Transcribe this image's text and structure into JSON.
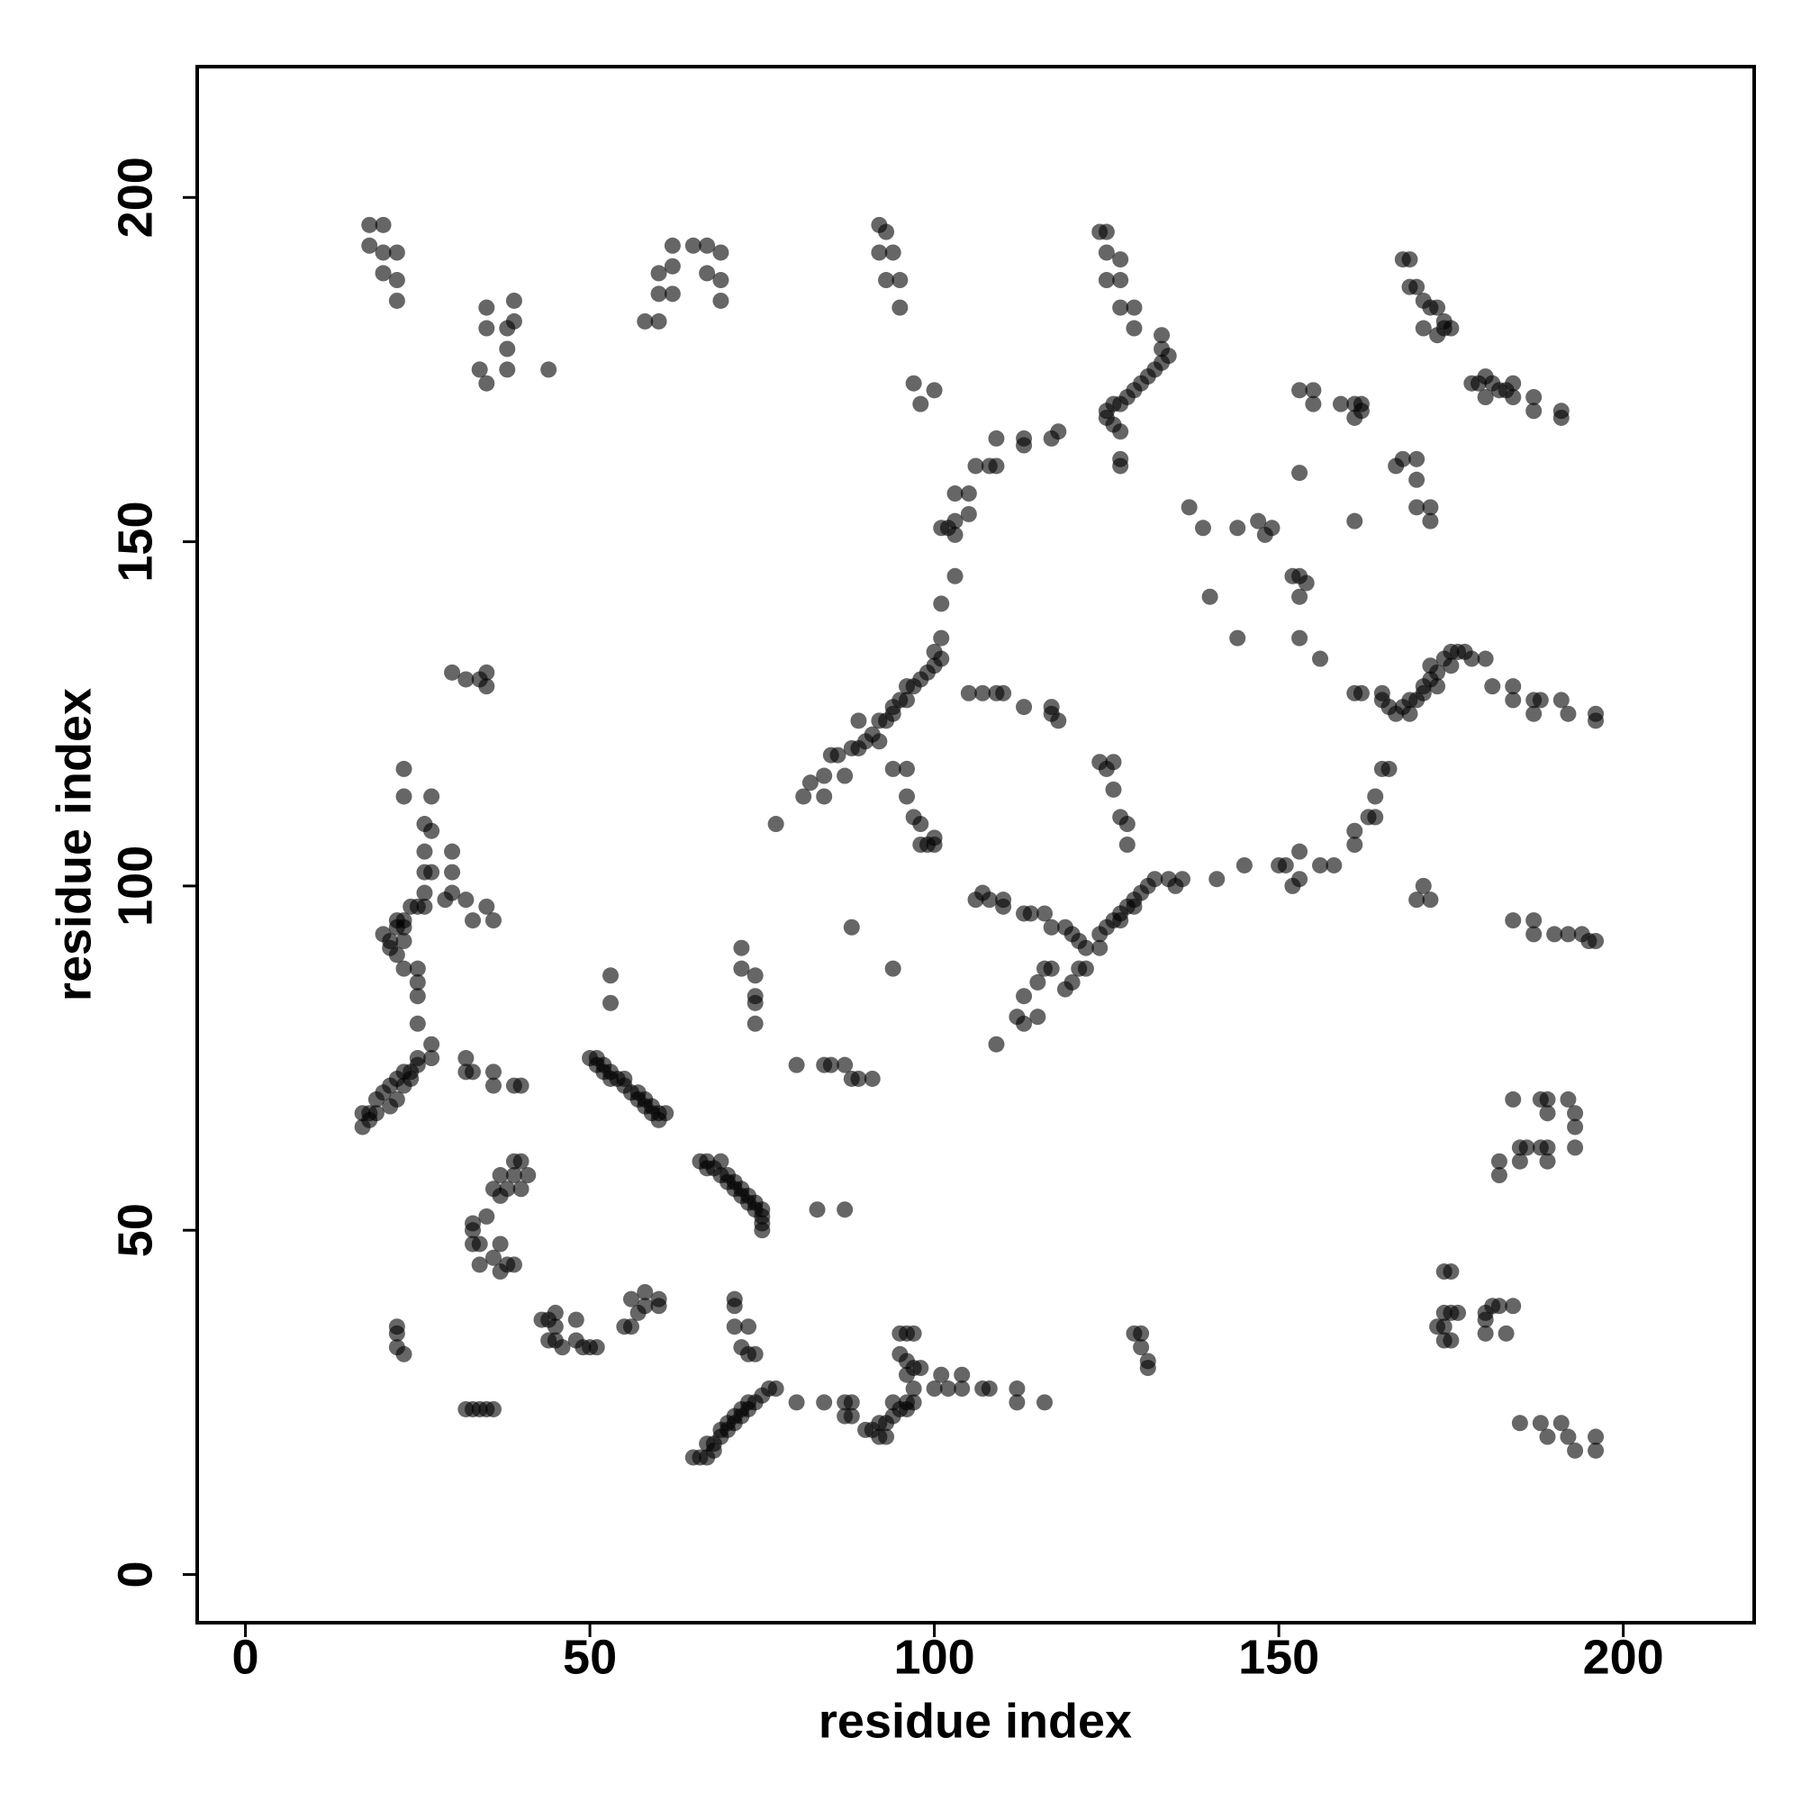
{
  "chart_data": {
    "type": "scatter",
    "x_label": "residue index",
    "y_label": "residue index",
    "xlim": [
      -7,
      219
    ],
    "ylim": [
      -7,
      219
    ],
    "xticks": [
      0,
      50,
      100,
      150,
      200
    ],
    "yticks": [
      0,
      50,
      100,
      150,
      200
    ],
    "point_opacity": 0.6,
    "x": [
      18,
      20,
      18,
      20,
      22,
      20,
      22,
      22,
      35,
      35,
      39,
      38,
      38,
      34,
      35,
      38,
      44,
      39,
      58,
      60,
      60,
      60,
      62,
      62,
      62,
      65,
      67,
      67,
      69,
      69,
      69,
      92,
      93,
      92,
      94,
      93,
      95,
      95,
      124,
      125,
      125,
      127,
      127,
      125,
      127,
      129,
      129,
      125,
      126,
      127,
      127,
      128,
      129,
      130,
      131,
      132,
      133,
      134,
      133,
      133,
      127,
      127,
      125,
      126,
      168,
      169,
      169,
      170,
      171,
      172,
      173,
      171,
      173,
      174,
      174,
      175,
      178,
      179,
      180,
      181,
      180,
      182,
      183,
      184,
      184,
      187,
      187,
      191,
      191,
      153,
      155,
      155,
      159,
      161,
      161,
      162,
      162,
      153,
      161,
      167,
      168,
      170,
      170,
      170,
      172,
      172,
      101,
      102,
      103,
      103,
      103,
      105,
      105,
      106,
      108,
      109,
      109,
      113,
      113,
      117,
      118,
      103,
      101,
      97,
      98,
      100,
      137,
      139,
      140,
      144,
      144,
      147,
      148,
      149,
      152,
      153,
      153,
      154,
      153,
      156,
      77,
      81,
      82,
      84,
      84,
      85,
      86,
      87,
      88,
      89,
      89,
      90,
      91,
      92,
      92,
      93,
      94,
      94,
      95,
      96,
      96,
      97,
      98,
      99,
      100,
      100,
      101,
      101,
      94,
      96,
      96,
      97,
      98,
      98,
      99,
      100,
      100,
      105,
      107,
      109,
      110,
      113,
      117,
      118,
      117,
      124,
      126,
      125,
      126,
      127,
      128,
      128,
      122,
      124,
      124,
      125,
      126,
      127,
      127,
      128,
      129,
      129,
      130,
      131,
      132,
      134,
      135,
      136,
      106,
      107,
      108,
      110,
      110,
      113,
      114,
      116,
      117,
      119,
      120,
      121,
      122,
      121,
      120,
      119,
      117,
      116,
      115,
      113,
      112,
      113,
      115,
      109,
      141,
      145,
      150,
      151,
      152,
      153,
      153,
      156,
      158,
      161,
      161,
      163,
      164,
      164,
      165,
      166,
      161,
      162,
      165,
      165,
      166,
      167,
      168,
      169,
      169,
      170,
      171,
      171,
      172,
      172,
      173,
      173,
      174,
      175,
      175,
      176,
      177,
      178,
      180,
      181,
      184,
      184,
      187,
      187,
      188,
      191,
      192,
      196,
      196,
      170,
      171,
      172,
      184,
      187,
      187,
      190,
      192,
      194,
      196,
      195,
      23,
      23,
      27,
      26,
      27,
      26,
      26,
      27,
      26,
      30,
      30,
      30,
      29,
      32,
      33,
      35,
      36,
      26,
      20,
      21,
      21,
      22,
      22,
      23,
      23,
      24,
      25,
      23,
      22,
      23,
      25,
      25,
      25,
      25,
      27,
      27,
      25,
      24,
      23,
      22,
      21,
      20,
      19,
      19,
      18,
      18,
      21,
      22,
      23,
      24,
      25,
      17,
      17,
      30,
      32,
      34,
      35,
      35,
      32,
      32,
      33,
      36,
      36,
      39,
      40,
      50,
      51,
      51,
      52,
      52,
      53,
      53,
      54,
      55,
      55,
      56,
      57,
      57,
      58,
      58,
      59,
      59,
      60,
      60,
      61,
      53,
      53,
      66,
      67,
      67,
      68,
      69,
      69,
      70,
      70,
      71,
      71,
      72,
      72,
      73,
      73,
      74,
      74,
      75,
      75,
      75,
      75,
      72,
      72,
      74,
      74,
      74,
      74,
      80,
      84,
      85,
      87,
      88,
      89,
      91,
      83,
      87,
      88,
      94,
      33,
      33,
      33,
      34,
      35,
      36,
      37,
      37,
      38,
      39,
      39,
      40,
      41,
      40,
      37,
      37,
      38,
      39,
      36,
      34,
      43,
      44,
      45,
      45,
      44,
      45,
      46,
      48,
      48,
      49,
      50,
      51,
      22,
      22,
      23,
      22,
      55,
      56,
      56,
      57,
      58,
      58,
      60,
      60,
      32,
      33,
      34,
      35,
      36,
      71,
      71,
      71,
      73,
      72,
      73,
      74,
      65,
      66,
      67,
      67,
      68,
      68,
      69,
      69,
      70,
      70,
      71,
      71,
      72,
      72,
      73,
      73,
      74,
      75,
      76,
      77,
      80,
      84,
      87,
      88,
      87,
      88,
      90,
      91,
      92,
      92,
      93,
      93,
      94,
      94,
      95,
      96,
      96,
      97,
      97,
      96,
      96,
      97,
      98,
      96,
      97,
      95,
      95,
      100,
      101,
      102,
      104,
      104,
      107,
      108,
      112,
      112,
      116,
      129,
      130,
      130,
      131,
      131,
      184,
      188,
      189,
      189,
      192,
      193,
      193,
      182,
      182,
      185,
      185,
      186,
      188,
      189,
      189,
      193,
      174,
      175,
      175,
      174,
      173,
      174,
      175,
      174,
      176,
      180,
      181,
      180,
      180,
      182,
      184,
      183,
      185,
      188,
      189,
      191,
      192,
      193,
      196,
      196
    ],
    "series": [
      {
        "color": "#000000",
        "values": [
          196,
          196,
          193,
          192,
          192,
          189,
          188,
          185,
          184,
          181,
          185,
          181,
          178,
          175,
          173,
          175,
          175,
          182,
          182,
          182,
          186,
          189,
          190,
          193,
          186,
          193,
          193,
          189,
          192,
          188,
          185,
          196,
          195,
          192,
          192,
          188,
          188,
          184,
          195,
          195,
          192,
          191,
          188,
          188,
          184,
          184,
          181,
          168,
          167,
          166,
          170,
          171,
          172,
          173,
          174,
          175,
          176,
          177,
          178,
          180,
          161,
          162,
          169,
          170,
          191,
          191,
          187,
          187,
          185,
          184,
          184,
          181,
          180,
          181,
          182,
          181,
          173,
          173,
          174,
          173,
          171,
          172,
          172,
          171,
          173,
          171,
          169,
          169,
          168,
          172,
          172,
          170,
          170,
          170,
          168,
          169,
          170,
          160,
          153,
          161,
          162,
          162,
          159,
          155,
          155,
          153,
          152,
          152,
          153,
          151,
          157,
          154,
          157,
          161,
          161,
          165,
          161,
          165,
          164,
          165,
          166,
          145,
          141,
          173,
          170,
          172,
          155,
          152,
          142,
          136,
          152,
          153,
          151,
          152,
          145,
          145,
          142,
          144,
          136,
          133,
          109,
          113,
          115,
          113,
          116,
          119,
          119,
          116,
          120,
          124,
          120,
          121,
          122,
          121,
          124,
          124,
          125,
          126,
          127,
          127,
          129,
          129,
          130,
          131,
          132,
          134,
          136,
          133,
          117,
          117,
          113,
          110,
          109,
          106,
          106,
          107,
          106,
          128,
          128,
          128,
          128,
          126,
          126,
          124,
          125,
          118,
          118,
          117,
          114,
          110,
          109,
          106,
          88,
          91,
          93,
          94,
          95,
          95,
          96,
          97,
          97,
          98,
          99,
          100,
          101,
          101,
          100,
          101,
          98,
          99,
          98,
          98,
          97,
          96,
          96,
          96,
          94,
          94,
          93,
          92,
          91,
          88,
          86,
          85,
          88,
          88,
          86,
          84,
          81,
          80,
          81,
          77,
          101,
          103,
          103,
          103,
          100,
          101,
          105,
          103,
          103,
          106,
          108,
          110,
          110,
          113,
          117,
          117,
          128,
          128,
          128,
          127,
          126,
          125,
          126,
          125,
          127,
          127,
          128,
          129,
          130,
          132,
          131,
          129,
          133,
          132,
          134,
          134,
          134,
          133,
          133,
          129,
          129,
          127,
          127,
          125,
          127,
          127,
          125,
          125,
          124,
          98,
          100,
          98,
          95,
          95,
          93,
          93,
          93,
          93,
          92,
          92,
          117,
          113,
          113,
          109,
          108,
          105,
          102,
          102,
          99,
          105,
          102,
          99,
          98,
          98,
          95,
          97,
          95,
          97,
          93,
          92,
          91,
          95,
          94,
          94,
          95,
          97,
          97,
          92,
          90,
          88,
          88,
          86,
          84,
          80,
          77,
          75,
          75,
          73,
          73,
          72,
          71,
          70,
          69,
          67,
          67,
          66,
          68,
          69,
          71,
          72,
          74,
          67,
          65,
          131,
          130,
          130,
          131,
          129,
          75,
          73,
          73,
          73,
          71,
          71,
          71,
          75,
          75,
          74,
          74,
          73,
          73,
          72,
          72,
          72,
          71,
          70,
          70,
          69,
          69,
          68,
          68,
          67,
          67,
          66,
          67,
          87,
          83,
          60,
          60,
          59,
          59,
          58,
          60,
          58,
          57,
          57,
          56,
          56,
          55,
          55,
          54,
          54,
          53,
          53,
          52,
          51,
          50,
          91,
          88,
          87,
          84,
          83,
          80,
          74,
          74,
          74,
          74,
          72,
          72,
          72,
          53,
          53,
          94,
          88,
          51,
          50,
          48,
          48,
          52,
          56,
          58,
          55,
          56,
          58,
          60,
          60,
          58,
          56,
          48,
          44,
          45,
          45,
          46,
          45,
          37,
          37,
          38,
          36,
          34,
          34,
          33,
          37,
          34,
          33,
          33,
          33,
          35,
          36,
          32,
          33,
          36,
          36,
          40,
          38,
          41,
          39,
          39,
          40,
          24,
          24,
          24,
          24,
          24,
          40,
          39,
          36,
          36,
          33,
          32,
          32,
          17,
          17,
          17,
          19,
          19,
          18,
          20,
          21,
          21,
          22,
          22,
          23,
          23,
          24,
          24,
          25,
          25,
          26,
          27,
          27,
          25,
          25,
          25,
          25,
          23,
          23,
          21,
          21,
          22,
          20,
          20,
          22,
          23,
          25,
          24,
          24,
          25,
          25,
          27,
          29,
          31,
          30,
          30,
          35,
          35,
          35,
          32,
          27,
          29,
          27,
          29,
          27,
          27,
          27,
          27,
          25,
          25,
          35,
          35,
          33,
          31,
          30,
          69,
          69,
          69,
          67,
          69,
          67,
          65,
          60,
          58,
          62,
          60,
          62,
          62,
          62,
          60,
          62,
          44,
          44,
          38,
          38,
          36,
          36,
          34,
          34,
          38,
          38,
          39,
          37,
          35,
          39,
          39,
          35,
          22,
          22,
          20,
          22,
          20,
          18,
          20,
          18
        ]
      }
    ]
  }
}
